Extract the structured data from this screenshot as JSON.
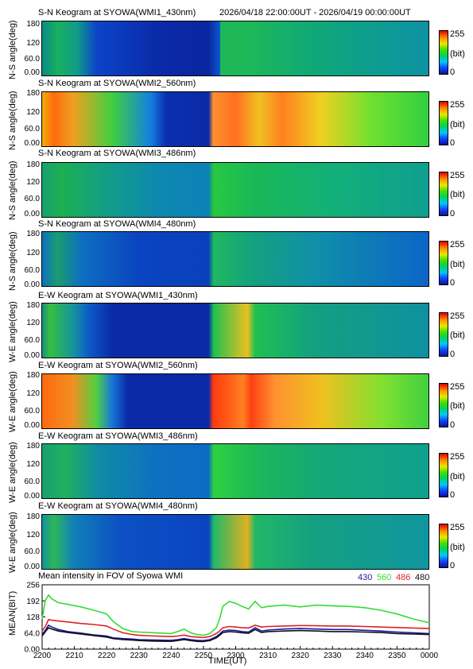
{
  "header": {
    "range": "2026/04/18 22:00:00UT - 2026/04/19 00:00:00UT"
  },
  "keograms": [
    {
      "title": "S-N Keogram at SYOWA(WMI1_430nm)",
      "ylabel": "N-S angle(deg)"
    },
    {
      "title": "S-N Keogram at SYOWA(WMI2_560nm)",
      "ylabel": "N-S angle(deg)"
    },
    {
      "title": "S-N Keogram at SYOWA(WMI3_486nm)",
      "ylabel": "N-S angle(deg)"
    },
    {
      "title": "S-N Keogram at SYOWA(WMI4_480nm)",
      "ylabel": "N-S angle(deg)"
    },
    {
      "title": "E-W Keogram at SYOWA(WMI1_430nm)",
      "ylabel": "W-E angle(deg)"
    },
    {
      "title": "E-W Keogram at SYOWA(WMI2_560nm)",
      "ylabel": "W-E angle(deg)"
    },
    {
      "title": "E-W Keogram at SYOWA(WMI3_486nm)",
      "ylabel": "W-E angle(deg)"
    },
    {
      "title": "E-W Keogram at SYOWA(WMI4_480nm)",
      "ylabel": "W-E angle(deg)"
    }
  ],
  "keogram_yticks": [
    "180",
    "120",
    "60.0",
    "0.00"
  ],
  "colorbar": {
    "max": "255",
    "unit": "(bit)",
    "min": "0"
  },
  "chart_data": {
    "type": "line",
    "title": "Mean intensity in FOV of Syowa WMI",
    "xlabel": "TIME(UT)",
    "ylabel": "MEAN(BIT)",
    "xticks": [
      "2200",
      "2210",
      "2220",
      "2230",
      "2240",
      "2250",
      "2300",
      "2310",
      "2320",
      "2330",
      "2340",
      "2350",
      "0000"
    ],
    "yticks": [
      "256",
      "192",
      "128",
      "64.0",
      "0.00"
    ],
    "ylim": [
      0,
      256
    ],
    "xlim_minutes": [
      0,
      120
    ],
    "legend_placement": "top-right",
    "x": [
      0,
      1,
      2,
      3,
      5,
      8,
      12,
      16,
      20,
      22,
      25,
      28,
      30,
      35,
      40,
      42,
      44,
      46,
      48,
      50,
      52,
      54,
      55,
      56,
      58,
      60,
      62,
      64,
      66,
      68,
      70,
      75,
      80,
      85,
      90,
      95,
      100,
      105,
      110,
      115,
      120
    ],
    "series": [
      {
        "name": "430",
        "color": "#1a1aa8",
        "values": [
          58,
          75,
          95,
          88,
          78,
          70,
          64,
          57,
          52,
          45,
          42,
          40,
          38,
          36,
          35,
          38,
          42,
          38,
          35,
          34,
          38,
          50,
          60,
          72,
          76,
          74,
          70,
          68,
          85,
          72,
          76,
          80,
          82,
          80,
          78,
          78,
          75,
          72,
          68,
          65,
          62
        ]
      },
      {
        "name": "560",
        "color": "#33dd33",
        "values": [
          120,
          195,
          215,
          200,
          185,
          178,
          168,
          155,
          140,
          110,
          82,
          70,
          68,
          65,
          62,
          70,
          80,
          65,
          58,
          55,
          62,
          85,
          120,
          170,
          190,
          182,
          170,
          160,
          190,
          165,
          170,
          175,
          168,
          175,
          172,
          170,
          165,
          155,
          140,
          120,
          105
        ]
      },
      {
        "name": "486",
        "color": "#dd2222",
        "values": [
          72,
          90,
          118,
          115,
          112,
          108,
          102,
          98,
          92,
          80,
          65,
          58,
          55,
          52,
          50,
          52,
          56,
          50,
          48,
          46,
          50,
          62,
          72,
          85,
          90,
          88,
          85,
          84,
          95,
          88,
          90,
          92,
          94,
          93,
          92,
          92,
          90,
          88,
          86,
          84,
          82
        ]
      },
      {
        "name": "480",
        "color": "#111111",
        "values": [
          52,
          70,
          85,
          80,
          72,
          66,
          60,
          54,
          48,
          42,
          38,
          36,
          34,
          32,
          31,
          34,
          38,
          34,
          31,
          30,
          34,
          45,
          55,
          66,
          70,
          68,
          65,
          63,
          78,
          66,
          70,
          72,
          74,
          72,
          70,
          70,
          68,
          66,
          62,
          60,
          58
        ]
      }
    ]
  }
}
